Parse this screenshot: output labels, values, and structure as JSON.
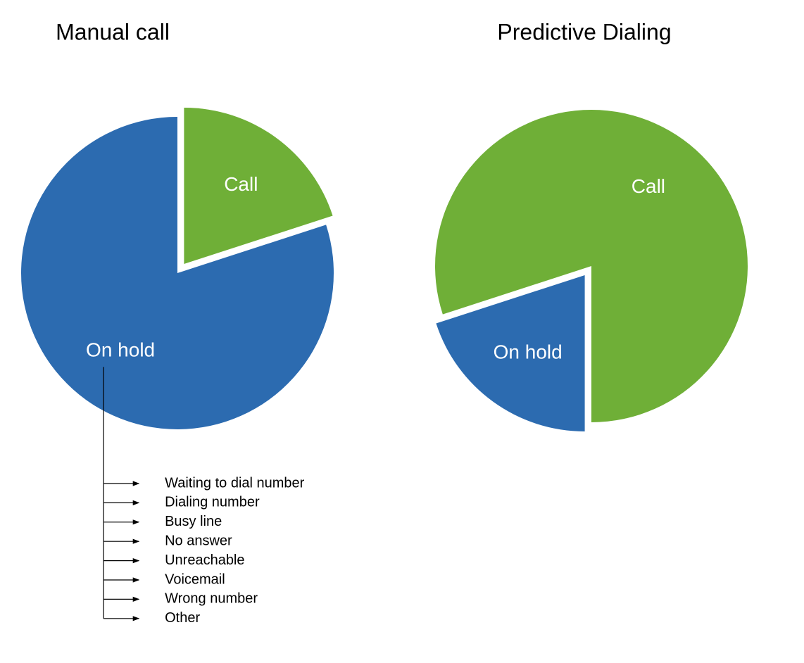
{
  "chart_data": [
    {
      "type": "pie",
      "title": "Manual call",
      "series": [
        {
          "name": "Call",
          "color": "#6faf37",
          "values": [
            20
          ]
        },
        {
          "name": "On hold",
          "color": "#2c6bb0",
          "values": [
            80
          ]
        }
      ],
      "annotations": [
        "Waiting to dial number",
        "Dialing number",
        "Busy line",
        "No answer",
        "Unreachable",
        "Voicemail",
        "Wrong number",
        "Other"
      ]
    },
    {
      "type": "pie",
      "title": "Predictive Dialing",
      "series": [
        {
          "name": "On hold",
          "color": "#2c6bb0",
          "values": [
            20
          ]
        },
        {
          "name": "Call",
          "color": "#6faf37",
          "values": [
            80
          ]
        }
      ]
    }
  ]
}
